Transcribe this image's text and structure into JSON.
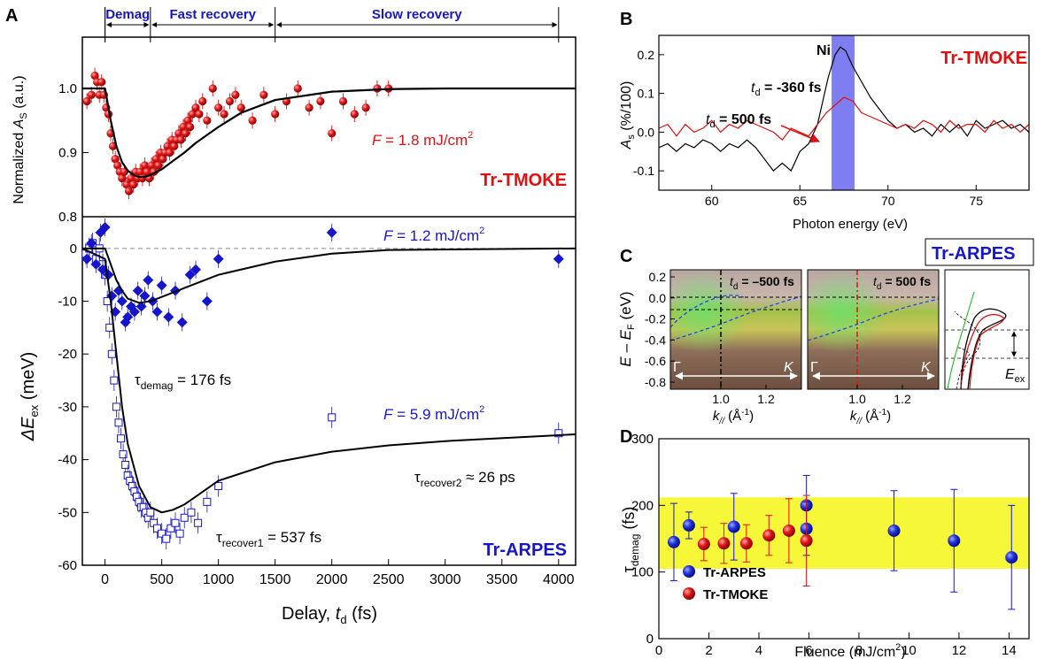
{
  "panels": {
    "A": {
      "letter": "A"
    },
    "B": {
      "letter": "B"
    },
    "C": {
      "letter": "C"
    },
    "D": {
      "letter": "D"
    }
  },
  "colors": {
    "tmoke_red": "#e01010",
    "arpes_blue": "#1515cc",
    "fit_black": "#000000",
    "band_blue": "#7070f0",
    "band_yellow": "#f7f73a"
  },
  "chart_data": [
    {
      "id": "A-top",
      "type": "scatter",
      "phases": [
        {
          "label": "Demag",
          "from": 0,
          "to": 400
        },
        {
          "label": "Fast recovery",
          "from": 400,
          "to": 1500
        },
        {
          "label": "Slow recovery",
          "from": 1500,
          "to": 4000
        }
      ],
      "ylabel_main": "Normalized ",
      "ylabel_var": "A",
      "ylabel_sub": "S",
      "ylabel_tail": " (a.u.)",
      "ylim": [
        0.8,
        1.08
      ],
      "yticks": [
        "0.8",
        "0.9",
        "1.0"
      ],
      "xlim": [
        -200,
        4150
      ],
      "annotation_F": "F",
      "annotation_val": " = 1.8 mJ/cm",
      "annotation_sup": "2",
      "tag": "Tr-TMOKE",
      "series": [
        {
          "marker": "red-sphere",
          "x": [
            -160,
            -120,
            -90,
            -70,
            -50,
            -30,
            -10,
            10,
            30,
            50,
            70,
            90,
            110,
            130,
            150,
            170,
            190,
            210,
            230,
            250,
            270,
            290,
            310,
            330,
            350,
            370,
            390,
            410,
            430,
            450,
            470,
            490,
            510,
            530,
            550,
            570,
            590,
            610,
            630,
            650,
            670,
            690,
            710,
            730,
            750,
            770,
            800,
            830,
            860,
            900,
            950,
            1000,
            1050,
            1100,
            1150,
            1200,
            1300,
            1400,
            1500,
            1600,
            1700,
            1800,
            1900,
            2000,
            2100,
            2200,
            2300,
            2400,
            2500
          ],
          "y": [
            0.98,
            0.99,
            1.02,
            1.01,
            0.99,
            1.01,
            0.99,
            0.97,
            0.96,
            0.93,
            0.91,
            0.89,
            0.88,
            0.87,
            0.86,
            0.87,
            0.85,
            0.84,
            0.86,
            0.85,
            0.87,
            0.86,
            0.87,
            0.86,
            0.88,
            0.87,
            0.86,
            0.88,
            0.87,
            0.89,
            0.88,
            0.9,
            0.89,
            0.9,
            0.91,
            0.9,
            0.92,
            0.91,
            0.92,
            0.93,
            0.92,
            0.94,
            0.93,
            0.95,
            0.94,
            0.96,
            0.97,
            0.96,
            0.98,
            0.95,
            1.0,
            0.97,
            0.96,
            0.98,
            0.99,
            0.97,
            0.95,
            0.99,
            0.96,
            0.98,
            1.0,
            0.97,
            0.98,
            0.93,
            0.98,
            0.96,
            0.97,
            1.0,
            1.0
          ]
        }
      ],
      "fit": {
        "x": [
          -200,
          0,
          50,
          100,
          150,
          200,
          250,
          300,
          350,
          400,
          500,
          600,
          700,
          800,
          1000,
          1200,
          1500,
          2000,
          2500,
          3000,
          4150
        ],
        "y": [
          1.0,
          1.0,
          0.95,
          0.91,
          0.885,
          0.872,
          0.865,
          0.862,
          0.862,
          0.865,
          0.874,
          0.887,
          0.9,
          0.915,
          0.94,
          0.962,
          0.982,
          0.995,
          0.999,
          1.0,
          1.0
        ]
      }
    },
    {
      "id": "A-bottom",
      "type": "scatter",
      "xlabel": "Delay, ",
      "xlabel_var": "t",
      "xlabel_sub": "d",
      "xlabel_tail": " (fs)",
      "ylabel_pre": "ΔE",
      "ylabel_sub": "ex",
      "ylabel_tail": " (meV)",
      "xlim": [
        -200,
        4150
      ],
      "ylim": [
        -60,
        6
      ],
      "xticks": [
        0,
        500,
        1000,
        1500,
        2000,
        2500,
        3000,
        3500,
        4000
      ],
      "yticks": [
        0,
        -10,
        -20,
        -30,
        -40,
        -50,
        -60
      ],
      "annotations": {
        "F_low": " = 1.2 mJ/cm",
        "F_high": " = 5.9 mJ/cm",
        "sup": "2",
        "F": "F",
        "tau": "τ",
        "demag_sub": "demag",
        "demag_val": " = 176 fs",
        "recover1_sub": "recover1",
        "recover1_val": " = 537 fs",
        "recover2_sub": "recover2",
        "recover2_val": " ≈ 26 ps",
        "tag": "Tr-ARPES"
      },
      "series": [
        {
          "name_hidden": "1.2",
          "marker": "blue-diamond",
          "x": [
            -160,
            -120,
            -80,
            -40,
            -20,
            0,
            30,
            60,
            90,
            120,
            150,
            180,
            200,
            230,
            260,
            290,
            320,
            350,
            380,
            420,
            460,
            500,
            560,
            620,
            680,
            750,
            800,
            900,
            1000,
            2000,
            4000
          ],
          "y": [
            -2,
            1,
            -3,
            3,
            -4,
            4,
            -5,
            -9,
            -12,
            -8,
            -10,
            -14,
            -13,
            -11,
            -12,
            -8,
            -11,
            -9,
            -6,
            -10,
            -12,
            -7,
            -13,
            -8,
            -14,
            -5,
            -4,
            -10,
            -2,
            3,
            -2
          ]
        },
        {
          "name_hidden": "5.9",
          "marker": "blue-open-square",
          "x": [
            -170,
            -140,
            -110,
            -80,
            -50,
            -20,
            0,
            20,
            40,
            60,
            80,
            100,
            120,
            140,
            160,
            180,
            200,
            220,
            240,
            260,
            280,
            300,
            320,
            340,
            360,
            380,
            400,
            430,
            460,
            500,
            540,
            580,
            620,
            660,
            700,
            760,
            820,
            900,
            1000,
            2000,
            4000
          ],
          "y": [
            -1,
            0,
            1,
            -2,
            0,
            -3,
            -5,
            -10,
            -15,
            -20,
            -25,
            -30,
            -33,
            -36,
            -39,
            -41,
            -43,
            -44,
            -45,
            -46,
            -47,
            -48,
            -49,
            -49,
            -50,
            -51,
            -50,
            -52,
            -53,
            -54,
            -55,
            -53,
            -52,
            -54,
            -51,
            -50,
            -52,
            -48,
            -45,
            -32,
            -35
          ]
        }
      ],
      "fit_low": {
        "x": [
          -200,
          0,
          50,
          100,
          150,
          200,
          300,
          400,
          500,
          700,
          1000,
          1500,
          2000,
          2500,
          4150
        ],
        "y": [
          0,
          0,
          -3,
          -6,
          -8,
          -9.5,
          -10.3,
          -10,
          -9.2,
          -7.5,
          -5,
          -2.5,
          -1,
          -0.3,
          0
        ]
      },
      "fit_high": {
        "x": [
          -200,
          0,
          50,
          100,
          150,
          200,
          300,
          400,
          500,
          600,
          700,
          800,
          1000,
          1500,
          2000,
          2500,
          3000,
          4150
        ],
        "y": [
          0,
          -2,
          -10,
          -20,
          -30,
          -37,
          -45,
          -49,
          -50,
          -49.5,
          -48.5,
          -47,
          -44,
          -40.5,
          -38.5,
          -37.3,
          -36.5,
          -35.2
        ]
      }
    },
    {
      "id": "B",
      "type": "line",
      "xlabel": "Photon energy (eV)",
      "ylabel_var": "A",
      "ylabel_sub": "s",
      "ylabel_tail": " (%/100)",
      "xlim": [
        57,
        78
      ],
      "ylim": [
        -0.15,
        0.25
      ],
      "xticks": [
        60,
        65,
        70,
        75
      ],
      "yticks": [
        "-0.1",
        "0.0",
        "0.1",
        "0.2"
      ],
      "band_label": "Ni",
      "band": [
        66.8,
        68.1
      ],
      "tag": "Tr-TMOKE",
      "label_t": "t",
      "label_d": "d",
      "label_neg": " = -360 fs",
      "label_pos": " = 500 fs",
      "series": [
        {
          "color": "black",
          "x": [
            57,
            57.5,
            58,
            58.5,
            59,
            59.5,
            60,
            60.5,
            61,
            61.5,
            62,
            62.5,
            63,
            63.5,
            64,
            64.5,
            65,
            65.5,
            66,
            66.3,
            66.6,
            67,
            67.3,
            67.6,
            68,
            68.5,
            69,
            69.5,
            70,
            70.5,
            71,
            71.5,
            72,
            72.5,
            73,
            73.5,
            74,
            74.5,
            75,
            75.5,
            76,
            76.5,
            77,
            77.5,
            78
          ],
          "y": [
            -0.04,
            -0.03,
            -0.05,
            -0.03,
            -0.04,
            -0.02,
            -0.03,
            -0.05,
            -0.03,
            -0.04,
            -0.02,
            -0.04,
            -0.07,
            -0.1,
            -0.08,
            -0.1,
            -0.05,
            -0.03,
            0.02,
            0.08,
            0.14,
            0.2,
            0.22,
            0.21,
            0.17,
            0.13,
            0.09,
            0.06,
            0.03,
            0.01,
            0.02,
            0.0,
            0.01,
            -0.01,
            0.02,
            0.0,
            0.02,
            -0.01,
            0.03,
            0.01,
            0.02,
            0.03,
            0.01,
            0.02,
            0.0
          ]
        },
        {
          "color": "red",
          "x": [
            57,
            57.5,
            58,
            58.5,
            59,
            59.5,
            60,
            60.5,
            61,
            61.5,
            62,
            62.5,
            63,
            63.5,
            64,
            64.5,
            65,
            65.5,
            66,
            66.5,
            67,
            67.5,
            68,
            68.5,
            69,
            69.5,
            70,
            70.5,
            71,
            71.5,
            72,
            72.5,
            73,
            73.5,
            74,
            74.5,
            75,
            75.5,
            76,
            76.5,
            77,
            77.5,
            78
          ],
          "y": [
            0.01,
            0.02,
            -0.01,
            0.02,
            0.0,
            0.01,
            0.03,
            0.0,
            0.02,
            0.01,
            0.03,
            0.02,
            0.01,
            0.0,
            -0.02,
            0.01,
            0.0,
            -0.01,
            0.02,
            0.05,
            0.07,
            0.09,
            0.08,
            0.05,
            0.04,
            0.03,
            0.02,
            0.01,
            0.02,
            0.01,
            0.03,
            0.02,
            0.0,
            0.03,
            0.01,
            0.02,
            0.02,
            0.0,
            0.03,
            0.01,
            0.02,
            0.0,
            0.02
          ]
        }
      ]
    },
    {
      "id": "C",
      "type": "heatmap",
      "tag": "Tr-ARPES",
      "ylabel_pre": "E – E",
      "ylabel_sub": "F",
      "ylabel_tail": " (eV)",
      "xlabel_var": "k",
      "xlabel_sub": "//",
      "xlabel_tail": " (Å",
      "xlabel_sup": "-1",
      "xlabel_close": ")",
      "yticks": [
        "0.2",
        "0.0",
        "-0.2",
        "-0.4",
        "-0.6",
        "-0.8"
      ],
      "xticks": [
        "1.0",
        "1.2"
      ],
      "gamma": "Γ",
      "kpoint": "K",
      "panel_neg": " = –500 fs",
      "panel_pos": " = 500 fs",
      "t": "t",
      "d": "d",
      "eex_pre": "E",
      "eex_sub": "ex"
    },
    {
      "id": "D",
      "type": "scatter",
      "xlabel": "Fluence (mJ/cm",
      "xlabel_sup": "2",
      "xlabel_close": ")",
      "ylabel_pre": "τ",
      "ylabel_sub": "demag",
      "ylabel_tail": " (fs)",
      "xlim": [
        0,
        14.8
      ],
      "ylim": [
        0,
        300
      ],
      "xticks": [
        0,
        2,
        4,
        6,
        8,
        10,
        12,
        14
      ],
      "yticks": [
        0,
        100,
        200,
        300
      ],
      "band": [
        105,
        212
      ],
      "series": [
        {
          "name": "Tr-ARPES",
          "color": "blue",
          "x": [
            0.6,
            1.2,
            3.0,
            5.9,
            5.9,
            9.4,
            11.8,
            14.1
          ],
          "y": [
            145,
            170,
            168,
            200,
            165,
            162,
            147,
            122
          ],
          "err": [
            58,
            20,
            50,
            45,
            40,
            60,
            77,
            78
          ]
        },
        {
          "name": "Tr-TMOKE",
          "color": "red",
          "x": [
            1.8,
            2.6,
            3.5,
            4.4,
            5.2,
            5.9
          ],
          "y": [
            142,
            143,
            143,
            155,
            162,
            147
          ],
          "err": [
            25,
            30,
            28,
            30,
            48,
            68
          ]
        }
      ]
    }
  ]
}
